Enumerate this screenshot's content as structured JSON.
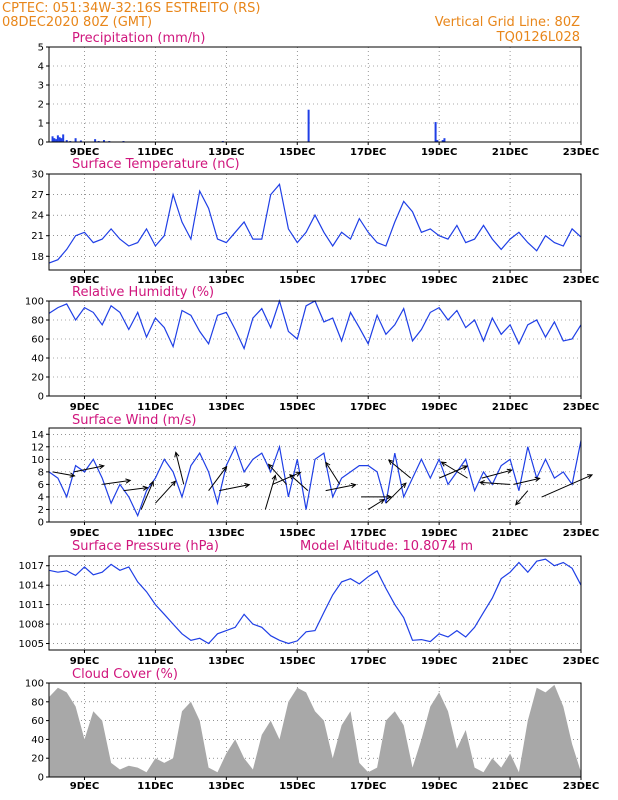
{
  "header": {
    "line1_left": "CPTEC:   051:34W-32:16S   ESTREITO (RS)",
    "line2_left": "08DEC2020 80Z (GMT)",
    "line2_right": "Vertical Grid Line: 80Z",
    "line3_right": "TQ0126L028"
  },
  "colors": {
    "header": "#e8861a",
    "title": "#d0167d",
    "series_line": "#1f3fe6",
    "precip_bar": "#1f3fe6",
    "cloud_fill": "#a8a8a8",
    "wind_arrow": "#000000"
  },
  "chart_data": [
    {
      "id": "precip",
      "type": "bar",
      "title": "Precipitation (mm/h)",
      "ylim": [
        0,
        5
      ],
      "yticks": [
        0,
        1,
        2,
        3,
        4,
        5
      ],
      "xticks": [
        "9DEC",
        "11DEC",
        "13DEC",
        "15DEC",
        "17DEC",
        "19DEC",
        "21DEC",
        "23DEC"
      ],
      "grid": true,
      "x": [
        8.1,
        8.15,
        8.2,
        8.25,
        8.3,
        8.35,
        8.4,
        8.5,
        8.6,
        8.75,
        8.9,
        9.3,
        9.4,
        9.55,
        9.7,
        10.1,
        12.9,
        15.32,
        18.9,
        18.95,
        19.1,
        19.15
      ],
      "values": [
        0.3,
        0.2,
        0.15,
        0.35,
        0.25,
        0.2,
        0.4,
        0.1,
        0.05,
        0.2,
        0.08,
        0.15,
        0.05,
        0.1,
        0.05,
        0.05,
        0.05,
        1.7,
        1.05,
        0.1,
        0.1,
        0.2
      ]
    },
    {
      "id": "temp",
      "type": "line",
      "title": "Surface Temperature (nC)",
      "ylim": [
        16,
        30
      ],
      "yticks": [
        18,
        21,
        24,
        27,
        30
      ],
      "xticks": [
        "9DEC",
        "11DEC",
        "13DEC",
        "15DEC",
        "17DEC",
        "19DEC",
        "21DEC",
        "23DEC"
      ],
      "grid": true,
      "x": [
        8.0,
        8.25,
        8.5,
        8.75,
        9.0,
        9.25,
        9.5,
        9.75,
        10.0,
        10.25,
        10.5,
        10.75,
        11.0,
        11.25,
        11.5,
        11.75,
        12.0,
        12.25,
        12.5,
        12.75,
        13.0,
        13.25,
        13.5,
        13.75,
        14.0,
        14.25,
        14.5,
        14.75,
        15.0,
        15.25,
        15.5,
        15.75,
        16.0,
        16.25,
        16.5,
        16.75,
        17.0,
        17.25,
        17.5,
        17.75,
        18.0,
        18.25,
        18.5,
        18.75,
        19.0,
        19.25,
        19.5,
        19.75,
        20.0,
        20.25,
        20.5,
        20.75,
        21.0,
        21.25,
        21.5,
        21.75,
        22.0,
        22.25,
        22.5,
        22.75,
        23.0
      ],
      "values": [
        17.0,
        17.5,
        19.0,
        21.0,
        21.5,
        20.0,
        20.5,
        22.0,
        20.5,
        19.5,
        20.0,
        22.0,
        19.5,
        21.0,
        27.0,
        23.0,
        20.5,
        27.5,
        25.0,
        20.5,
        20.0,
        21.5,
        23.0,
        20.5,
        20.5,
        27.0,
        28.5,
        22.0,
        20.0,
        21.5,
        24.0,
        21.5,
        19.5,
        21.5,
        20.5,
        23.5,
        21.5,
        20.0,
        19.5,
        23.0,
        26.0,
        24.5,
        21.5,
        22.0,
        21.0,
        20.5,
        22.5,
        20.0,
        20.5,
        22.5,
        20.5,
        19.0,
        20.5,
        21.5,
        20.0,
        18.8,
        21.0,
        20.0,
        19.5,
        22.0,
        20.8
      ]
    },
    {
      "id": "rh",
      "type": "line",
      "title": "Relative Humidity (%)",
      "ylim": [
        0,
        100
      ],
      "yticks": [
        0,
        20,
        40,
        60,
        80,
        100
      ],
      "xticks": [
        "9DEC",
        "11DEC",
        "13DEC",
        "15DEC",
        "17DEC",
        "19DEC",
        "21DEC",
        "23DEC"
      ],
      "grid": true,
      "x": [
        8.0,
        8.25,
        8.5,
        8.75,
        9.0,
        9.25,
        9.5,
        9.75,
        10.0,
        10.25,
        10.5,
        10.75,
        11.0,
        11.25,
        11.5,
        11.75,
        12.0,
        12.25,
        12.5,
        12.75,
        13.0,
        13.25,
        13.5,
        13.75,
        14.0,
        14.25,
        14.5,
        14.75,
        15.0,
        15.25,
        15.5,
        15.75,
        16.0,
        16.25,
        16.5,
        16.75,
        17.0,
        17.25,
        17.5,
        17.75,
        18.0,
        18.25,
        18.5,
        18.75,
        19.0,
        19.25,
        19.5,
        19.75,
        20.0,
        20.25,
        20.5,
        20.75,
        21.0,
        21.25,
        21.5,
        21.75,
        22.0,
        22.25,
        22.5,
        22.75,
        23.0
      ],
      "values": [
        87,
        93,
        97,
        80,
        93,
        88,
        75,
        95,
        88,
        70,
        88,
        62,
        82,
        72,
        52,
        90,
        85,
        68,
        55,
        85,
        88,
        70,
        50,
        82,
        92,
        72,
        100,
        68,
        60,
        95,
        100,
        78,
        82,
        58,
        88,
        72,
        55,
        85,
        65,
        75,
        92,
        58,
        70,
        88,
        93,
        80,
        90,
        72,
        80,
        58,
        82,
        65,
        75,
        55,
        75,
        80,
        62,
        78,
        58,
        60,
        75
      ]
    },
    {
      "id": "wind",
      "type": "line",
      "title": "Surface Wind (m/s)",
      "ylim": [
        0,
        15
      ],
      "yticks": [
        0,
        2,
        4,
        6,
        8,
        10,
        12,
        14
      ],
      "xticks": [
        "9DEC",
        "11DEC",
        "13DEC",
        "15DEC",
        "17DEC",
        "19DEC",
        "21DEC",
        "23DEC"
      ],
      "grid": true,
      "x": [
        8.0,
        8.25,
        8.5,
        8.75,
        9.0,
        9.25,
        9.5,
        9.75,
        10.0,
        10.25,
        10.5,
        10.75,
        11.0,
        11.25,
        11.5,
        11.75,
        12.0,
        12.25,
        12.5,
        12.75,
        13.0,
        13.25,
        13.5,
        13.75,
        14.0,
        14.25,
        14.5,
        14.75,
        15.0,
        15.25,
        15.5,
        15.75,
        16.0,
        16.25,
        16.5,
        16.75,
        17.0,
        17.25,
        17.5,
        17.75,
        18.0,
        18.25,
        18.5,
        18.75,
        19.0,
        19.25,
        19.5,
        19.75,
        20.0,
        20.25,
        20.5,
        20.75,
        21.0,
        21.25,
        21.5,
        21.75,
        22.0,
        22.25,
        22.5,
        22.75,
        23.0
      ],
      "values": [
        8,
        7,
        4,
        9,
        8,
        10,
        7,
        3,
        6,
        4,
        1,
        5,
        7,
        10,
        8,
        4,
        9,
        11,
        8,
        3,
        9,
        12,
        8,
        10,
        11,
        8,
        12,
        4,
        10,
        2,
        10,
        11,
        4,
        7,
        8,
        9,
        9,
        8,
        3,
        11,
        4,
        7,
        10,
        7,
        10,
        6,
        8,
        10,
        5,
        8,
        6,
        9,
        10,
        5,
        12,
        7,
        10,
        7,
        8,
        6,
        13
      ],
      "arrows": [
        {
          "x": 8.1,
          "v": 8,
          "dx": 22,
          "dy": 4
        },
        {
          "x": 8.7,
          "v": 8,
          "dx": 30,
          "dy": -6
        },
        {
          "x": 9.5,
          "v": 6,
          "dx": 28,
          "dy": -4
        },
        {
          "x": 10.1,
          "v": 5,
          "dx": 24,
          "dy": -3
        },
        {
          "x": 10.6,
          "v": 2,
          "dx": 12,
          "dy": -28
        },
        {
          "x": 11.0,
          "v": 3,
          "dx": 20,
          "dy": -22
        },
        {
          "x": 11.8,
          "v": 6,
          "dx": -8,
          "dy": -32
        },
        {
          "x": 12.5,
          "v": 5,
          "dx": 18,
          "dy": -24
        },
        {
          "x": 12.8,
          "v": 5,
          "dx": 30,
          "dy": -6
        },
        {
          "x": 14.1,
          "v": 2,
          "dx": 10,
          "dy": -34
        },
        {
          "x": 14.3,
          "v": 6,
          "dx": 28,
          "dy": -12
        },
        {
          "x": 14.7,
          "v": 6,
          "dx": -18,
          "dy": -20
        },
        {
          "x": 15.3,
          "v": 5,
          "dx": -18,
          "dy": -16
        },
        {
          "x": 15.8,
          "v": 5,
          "dx": 30,
          "dy": -6
        },
        {
          "x": 16.2,
          "v": 6,
          "dx": -14,
          "dy": -22
        },
        {
          "x": 16.8,
          "v": 4,
          "dx": 30,
          "dy": 0
        },
        {
          "x": 17.0,
          "v": 2,
          "dx": 16,
          "dy": -10
        },
        {
          "x": 17.5,
          "v": 3,
          "dx": 20,
          "dy": -20
        },
        {
          "x": 18.2,
          "v": 7,
          "dx": -22,
          "dy": -18
        },
        {
          "x": 19.0,
          "v": 7,
          "dx": 28,
          "dy": -12
        },
        {
          "x": 19.8,
          "v": 7,
          "dx": -26,
          "dy": -16
        },
        {
          "x": 20.2,
          "v": 7,
          "dx": 30,
          "dy": -8
        },
        {
          "x": 21.0,
          "v": 6,
          "dx": -30,
          "dy": -2
        },
        {
          "x": 21.1,
          "v": 6,
          "dx": 26,
          "dy": -6
        },
        {
          "x": 21.5,
          "v": 5,
          "dx": -12,
          "dy": 14
        },
        {
          "x": 21.9,
          "v": 4,
          "dx": 50,
          "dy": -22
        }
      ]
    },
    {
      "id": "pressure",
      "type": "line",
      "title": "Surface Pressure (hPa)",
      "annotation": "Model Altitude: 10.8074 m",
      "ylim": [
        1004,
        1018.5
      ],
      "yticks": [
        1005,
        1008,
        1011,
        1014,
        1017
      ],
      "xticks": [
        "9DEC",
        "11DEC",
        "13DEC",
        "15DEC",
        "17DEC",
        "19DEC",
        "21DEC",
        "23DEC"
      ],
      "grid": true,
      "x": [
        8.0,
        8.25,
        8.5,
        8.75,
        9.0,
        9.25,
        9.5,
        9.75,
        10.0,
        10.25,
        10.5,
        10.75,
        11.0,
        11.25,
        11.5,
        11.75,
        12.0,
        12.25,
        12.5,
        12.75,
        13.0,
        13.25,
        13.5,
        13.75,
        14.0,
        14.25,
        14.5,
        14.75,
        15.0,
        15.25,
        15.5,
        15.75,
        16.0,
        16.25,
        16.5,
        16.75,
        17.0,
        17.25,
        17.5,
        17.75,
        18.0,
        18.25,
        18.5,
        18.75,
        19.0,
        19.25,
        19.5,
        19.75,
        20.0,
        20.25,
        20.5,
        20.75,
        21.0,
        21.25,
        21.5,
        21.75,
        22.0,
        22.25,
        22.5,
        22.75,
        23.0
      ],
      "values": [
        1016.3,
        1016.0,
        1016.2,
        1015.5,
        1016.8,
        1015.6,
        1016.0,
        1017.2,
        1016.3,
        1016.8,
        1014.5,
        1013.0,
        1011.0,
        1009.5,
        1008.0,
        1006.5,
        1005.5,
        1005.8,
        1005.0,
        1006.5,
        1007.0,
        1007.5,
        1009.5,
        1008.0,
        1007.5,
        1006.2,
        1005.5,
        1005.0,
        1005.4,
        1006.8,
        1007.0,
        1009.8,
        1012.5,
        1014.5,
        1015.0,
        1014.2,
        1015.3,
        1016.2,
        1013.5,
        1011.0,
        1009.0,
        1005.5,
        1005.6,
        1005.3,
        1006.5,
        1006.0,
        1007.0,
        1006.0,
        1007.5,
        1009.8,
        1012.0,
        1015.0,
        1016.0,
        1017.5,
        1016.0,
        1017.7,
        1018.0,
        1017.0,
        1017.5,
        1016.6,
        1014.0
      ]
    },
    {
      "id": "cloud",
      "type": "area",
      "title": "Cloud Cover (%)",
      "ylim": [
        0,
        100
      ],
      "yticks": [
        0,
        20,
        40,
        60,
        80,
        100
      ],
      "xticks": [
        "9DEC",
        "11DEC",
        "13DEC",
        "15DEC",
        "17DEC",
        "19DEC",
        "21DEC",
        "23DEC"
      ],
      "grid": true,
      "x": [
        8.0,
        8.25,
        8.5,
        8.75,
        9.0,
        9.25,
        9.5,
        9.75,
        10.0,
        10.25,
        10.5,
        10.75,
        11.0,
        11.25,
        11.5,
        11.75,
        12.0,
        12.25,
        12.5,
        12.75,
        13.0,
        13.25,
        13.5,
        13.75,
        14.0,
        14.25,
        14.5,
        14.75,
        15.0,
        15.25,
        15.5,
        15.75,
        16.0,
        16.25,
        16.5,
        16.75,
        17.0,
        17.25,
        17.5,
        17.75,
        18.0,
        18.25,
        18.5,
        18.75,
        19.0,
        19.25,
        19.5,
        19.75,
        20.0,
        20.25,
        20.5,
        20.75,
        21.0,
        21.25,
        21.5,
        21.75,
        22.0,
        22.25,
        22.5,
        22.75,
        23.0
      ],
      "values": [
        85,
        95,
        90,
        75,
        40,
        70,
        60,
        15,
        8,
        12,
        10,
        5,
        20,
        15,
        20,
        70,
        80,
        60,
        10,
        5,
        25,
        40,
        20,
        8,
        45,
        60,
        40,
        80,
        95,
        90,
        70,
        60,
        20,
        55,
        70,
        15,
        5,
        10,
        60,
        70,
        55,
        10,
        40,
        75,
        90,
        70,
        30,
        50,
        10,
        5,
        20,
        10,
        25,
        5,
        60,
        95,
        90,
        98,
        75,
        35,
        5
      ]
    }
  ]
}
